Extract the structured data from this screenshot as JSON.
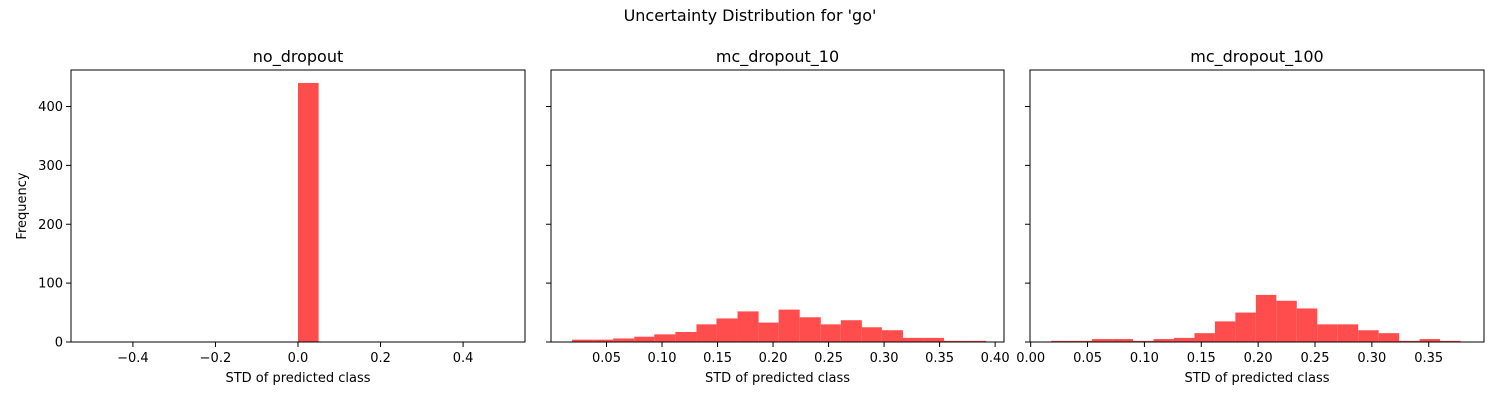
{
  "figure": {
    "suptitle": "Uncertainty Distribution for 'go'"
  },
  "colors": {
    "bar": "#ff4d4d",
    "axis": "#000000",
    "background": "#ffffff"
  },
  "chart_data": [
    {
      "type": "bar",
      "title": "no_dropout",
      "xlabel": "STD of predicted class",
      "ylabel": "Frequency",
      "xlim": [
        -0.55,
        0.55
      ],
      "ylim": [
        0,
        462
      ],
      "xticks": [
        -0.4,
        -0.2,
        0.0,
        0.2,
        0.4
      ],
      "xtick_labels": [
        "−0.4",
        "−0.2",
        "0.0",
        "0.2",
        "0.4"
      ],
      "yticks": [
        0,
        100,
        200,
        300,
        400
      ],
      "ytick_labels": [
        "0",
        "100",
        "200",
        "300",
        "400"
      ],
      "bins": [
        {
          "x0": 0.0,
          "x1": 0.05,
          "count": 440
        }
      ]
    },
    {
      "type": "bar",
      "title": "mc_dropout_10",
      "xlabel": "STD of predicted class",
      "ylabel": "",
      "xlim": [
        0.0,
        0.408
      ],
      "ylim": [
        0,
        462
      ],
      "xticks": [
        0.05,
        0.1,
        0.15,
        0.2,
        0.25,
        0.3,
        0.35,
        0.4
      ],
      "xtick_labels": [
        "0.05",
        "0.10",
        "0.15",
        "0.20",
        "0.25",
        "0.30",
        "0.35",
        "0.40"
      ],
      "yticks": [
        0,
        100,
        200,
        300,
        400
      ],
      "ytick_labels": [],
      "bins": [
        {
          "x0": 0.019,
          "x1": 0.038,
          "count": 4
        },
        {
          "x0": 0.038,
          "x1": 0.056,
          "count": 4
        },
        {
          "x0": 0.056,
          "x1": 0.075,
          "count": 6
        },
        {
          "x0": 0.075,
          "x1": 0.093,
          "count": 9
        },
        {
          "x0": 0.093,
          "x1": 0.112,
          "count": 13
        },
        {
          "x0": 0.112,
          "x1": 0.131,
          "count": 17
        },
        {
          "x0": 0.131,
          "x1": 0.149,
          "count": 30
        },
        {
          "x0": 0.149,
          "x1": 0.168,
          "count": 40
        },
        {
          "x0": 0.168,
          "x1": 0.187,
          "count": 52
        },
        {
          "x0": 0.187,
          "x1": 0.205,
          "count": 33
        },
        {
          "x0": 0.205,
          "x1": 0.224,
          "count": 55
        },
        {
          "x0": 0.224,
          "x1": 0.243,
          "count": 42
        },
        {
          "x0": 0.243,
          "x1": 0.261,
          "count": 30
        },
        {
          "x0": 0.261,
          "x1": 0.28,
          "count": 37
        },
        {
          "x0": 0.28,
          "x1": 0.298,
          "count": 25
        },
        {
          "x0": 0.298,
          "x1": 0.317,
          "count": 20
        },
        {
          "x0": 0.317,
          "x1": 0.336,
          "count": 7
        },
        {
          "x0": 0.336,
          "x1": 0.354,
          "count": 7
        },
        {
          "x0": 0.354,
          "x1": 0.373,
          "count": 2
        },
        {
          "x0": 0.373,
          "x1": 0.392,
          "count": 2
        }
      ]
    },
    {
      "type": "bar",
      "title": "mc_dropout_100",
      "xlabel": "STD of predicted class",
      "ylabel": "",
      "xlim": [
        -0.0006,
        0.3986
      ],
      "ylim": [
        0,
        462
      ],
      "xticks": [
        0.0,
        0.05,
        0.1,
        0.15,
        0.2,
        0.25,
        0.3,
        0.35
      ],
      "xtick_labels": [
        "0.00",
        "0.05",
        "0.10",
        "0.15",
        "0.20",
        "0.25",
        "0.30",
        "0.35"
      ],
      "yticks": [
        0,
        100,
        200,
        300,
        400
      ],
      "ytick_labels": [],
      "bins": [
        {
          "x0": 0.018,
          "x1": 0.036,
          "count": 2
        },
        {
          "x0": 0.036,
          "x1": 0.054,
          "count": 2
        },
        {
          "x0": 0.054,
          "x1": 0.072,
          "count": 5
        },
        {
          "x0": 0.072,
          "x1": 0.09,
          "count": 5
        },
        {
          "x0": 0.09,
          "x1": 0.108,
          "count": 2
        },
        {
          "x0": 0.108,
          "x1": 0.126,
          "count": 5
        },
        {
          "x0": 0.126,
          "x1": 0.144,
          "count": 7
        },
        {
          "x0": 0.144,
          "x1": 0.162,
          "count": 15
        },
        {
          "x0": 0.162,
          "x1": 0.18,
          "count": 35
        },
        {
          "x0": 0.18,
          "x1": 0.198,
          "count": 50
        },
        {
          "x0": 0.198,
          "x1": 0.216,
          "count": 80
        },
        {
          "x0": 0.216,
          "x1": 0.234,
          "count": 70
        },
        {
          "x0": 0.234,
          "x1": 0.252,
          "count": 57
        },
        {
          "x0": 0.252,
          "x1": 0.27,
          "count": 30
        },
        {
          "x0": 0.27,
          "x1": 0.288,
          "count": 30
        },
        {
          "x0": 0.288,
          "x1": 0.306,
          "count": 20
        },
        {
          "x0": 0.306,
          "x1": 0.324,
          "count": 15
        },
        {
          "x0": 0.324,
          "x1": 0.342,
          "count": 2
        },
        {
          "x0": 0.342,
          "x1": 0.36,
          "count": 5
        },
        {
          "x0": 0.36,
          "x1": 0.378,
          "count": 2
        }
      ]
    }
  ]
}
